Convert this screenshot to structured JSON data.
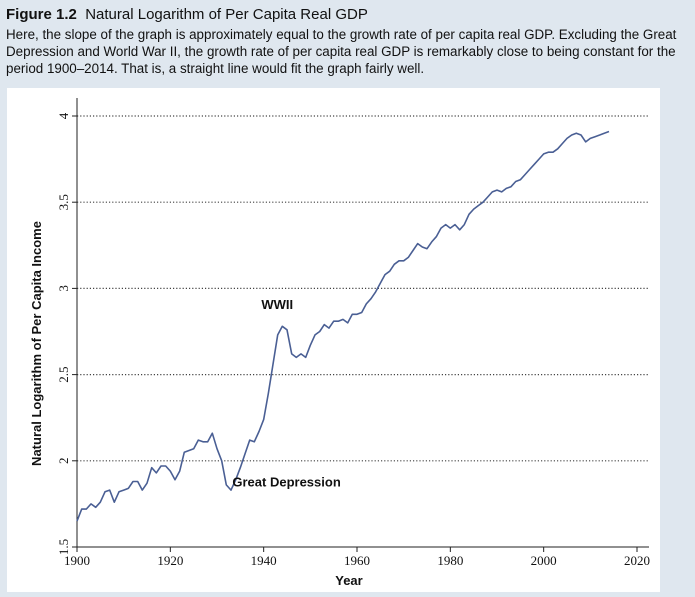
{
  "figure": {
    "label": "Figure 1.2",
    "title": "Natural Logarithm of Per Capita Real GDP",
    "caption": "Here, the slope of the graph is approximately equal to the growth rate of per capita real GDP. Excluding the Great Depression and World War II, the growth rate of per capita real GDP is remarkably close to being constant for the period 1900–2014. That is, a straight line would fit the graph fairly well."
  },
  "colors": {
    "background": "#dfe7ef",
    "line": "#4a5f94",
    "grid": "#444444"
  },
  "chart_data": {
    "type": "line",
    "xlabel": "Year",
    "ylabel": "Natural Logarithm of Per Capita Income",
    "xlim": [
      1900,
      2020
    ],
    "ylim": [
      1.5,
      4
    ],
    "x_ticks": [
      "1900",
      "1920",
      "1940",
      "1960",
      "1980",
      "2000",
      "2020"
    ],
    "x_tick_values": [
      1900,
      1920,
      1940,
      1960,
      1980,
      2000,
      2020
    ],
    "y_ticks": [
      "1.5",
      "2",
      "2.5",
      "3",
      "3.5",
      "4"
    ],
    "y_tick_values": [
      1.5,
      2,
      2.5,
      3,
      3.5,
      4
    ],
    "grid": "horizontal dotted",
    "annotations": [
      {
        "text": "WWII",
        "x": 1939.5,
        "y": 2.88
      },
      {
        "text": "Great Depression",
        "x": 1933.3,
        "y": 1.85
      }
    ],
    "series": [
      {
        "x": [
          1900,
          1901,
          1902,
          1903,
          1904,
          1905,
          1906,
          1907,
          1908,
          1909,
          1910,
          1911,
          1912,
          1913,
          1914,
          1915,
          1916,
          1917,
          1918,
          1919,
          1920,
          1921,
          1922,
          1923,
          1924,
          1925,
          1926,
          1927,
          1928,
          1929,
          1930,
          1931,
          1932,
          1933,
          1934,
          1935,
          1936,
          1937,
          1938,
          1939,
          1940,
          1941,
          1942,
          1943,
          1944,
          1945,
          1946,
          1947,
          1948,
          1949,
          1950,
          1951,
          1952,
          1953,
          1954,
          1955,
          1956,
          1957,
          1958,
          1959,
          1960,
          1961,
          1962,
          1963,
          1964,
          1965,
          1966,
          1967,
          1968,
          1969,
          1970,
          1971,
          1972,
          1973,
          1974,
          1975,
          1976,
          1977,
          1978,
          1979,
          1980,
          1981,
          1982,
          1983,
          1984,
          1985,
          1986,
          1987,
          1988,
          1989,
          1990,
          1991,
          1992,
          1993,
          1994,
          1995,
          1996,
          1997,
          1998,
          1999,
          2000,
          2001,
          2002,
          2003,
          2004,
          2005,
          2006,
          2007,
          2008,
          2009,
          2010,
          2011,
          2012,
          2013,
          2014
        ],
        "y": [
          1.65,
          1.72,
          1.72,
          1.75,
          1.73,
          1.76,
          1.82,
          1.83,
          1.76,
          1.82,
          1.83,
          1.84,
          1.88,
          1.88,
          1.83,
          1.87,
          1.96,
          1.93,
          1.97,
          1.97,
          1.94,
          1.89,
          1.94,
          2.05,
          2.06,
          2.07,
          2.12,
          2.11,
          2.11,
          2.16,
          2.07,
          2.0,
          1.86,
          1.83,
          1.89,
          1.96,
          2.04,
          2.12,
          2.11,
          2.17,
          2.24,
          2.39,
          2.56,
          2.73,
          2.78,
          2.76,
          2.62,
          2.6,
          2.62,
          2.6,
          2.67,
          2.73,
          2.75,
          2.79,
          2.77,
          2.81,
          2.81,
          2.82,
          2.8,
          2.85,
          2.85,
          2.86,
          2.91,
          2.94,
          2.98,
          3.03,
          3.08,
          3.1,
          3.14,
          3.16,
          3.16,
          3.18,
          3.22,
          3.26,
          3.24,
          3.23,
          3.27,
          3.3,
          3.35,
          3.37,
          3.35,
          3.37,
          3.34,
          3.37,
          3.43,
          3.46,
          3.48,
          3.5,
          3.53,
          3.56,
          3.57,
          3.56,
          3.58,
          3.59,
          3.62,
          3.63,
          3.66,
          3.69,
          3.72,
          3.75,
          3.78,
          3.79,
          3.79,
          3.81,
          3.84,
          3.87,
          3.89,
          3.9,
          3.89,
          3.85,
          3.87,
          3.88,
          3.89,
          3.9,
          3.91
        ]
      }
    ]
  }
}
